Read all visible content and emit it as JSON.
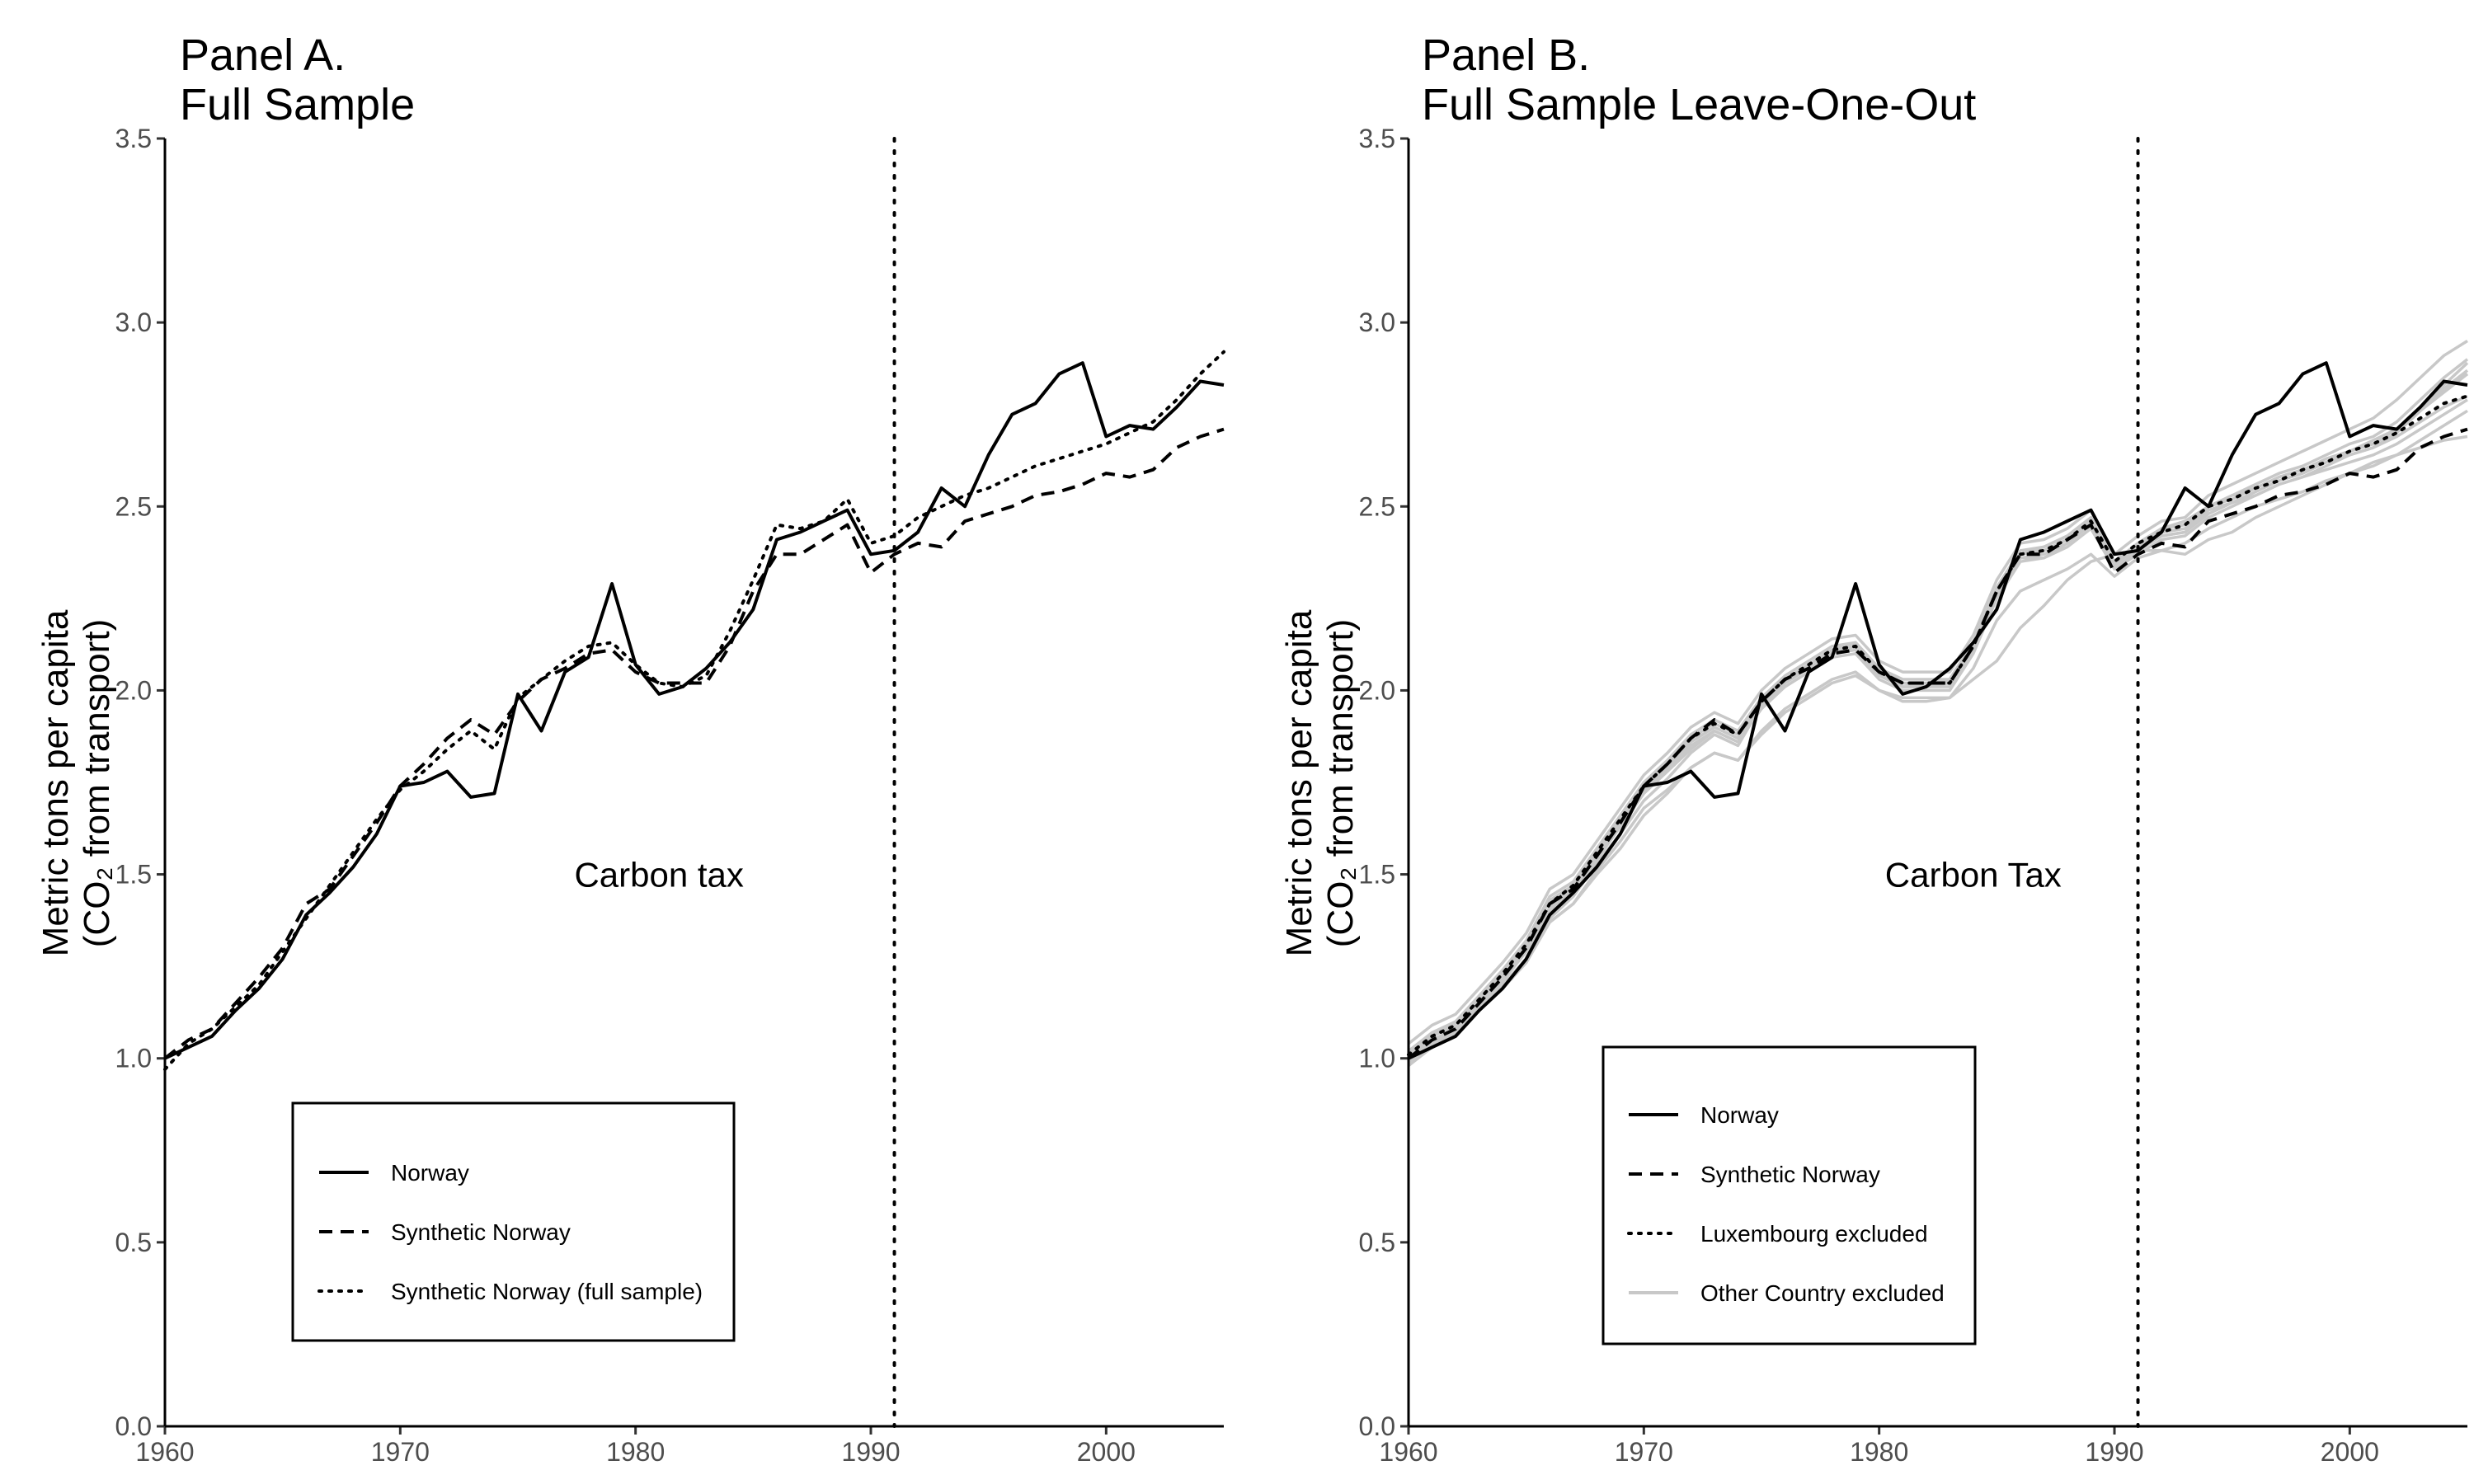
{
  "chart_data": [
    {
      "type": "line",
      "title": "Panel A.",
      "subtitle": "Full Sample",
      "ylabel": "Metric tons per capita",
      "ylabel2": "(CO₂ from transport)",
      "xlim": [
        1960,
        2005
      ],
      "ylim": [
        0,
        3.5
      ],
      "xticks": [
        1960,
        1970,
        1980,
        1990,
        2000
      ],
      "yticks": [
        "0.0",
        "0.5",
        "1.0",
        "1.5",
        "2.0",
        "2.5",
        "3.0",
        "3.5"
      ],
      "vline_x": 1991,
      "annotation": "Carbon tax",
      "annotation_x": 1981,
      "annotation_y": 1.5,
      "legend_position": "bottom-left",
      "x": [
        1960,
        1961,
        1962,
        1963,
        1964,
        1965,
        1966,
        1967,
        1968,
        1969,
        1970,
        1971,
        1972,
        1973,
        1974,
        1975,
        1976,
        1977,
        1978,
        1979,
        1980,
        1981,
        1982,
        1983,
        1984,
        1985,
        1986,
        1987,
        1988,
        1989,
        1990,
        1991,
        1992,
        1993,
        1994,
        1995,
        1996,
        1997,
        1998,
        1999,
        2000,
        2001,
        2002,
        2003,
        2004,
        2005
      ],
      "series": [
        {
          "name": "Norway",
          "style": "solid",
          "color": "#000000",
          "values": [
            1.0,
            1.03,
            1.06,
            1.13,
            1.19,
            1.27,
            1.39,
            1.45,
            1.52,
            1.61,
            1.74,
            1.75,
            1.78,
            1.71,
            1.72,
            1.99,
            1.89,
            2.05,
            2.09,
            2.29,
            2.07,
            1.99,
            2.01,
            2.06,
            2.13,
            2.22,
            2.41,
            2.43,
            2.46,
            2.49,
            2.37,
            2.38,
            2.43,
            2.55,
            2.5,
            2.64,
            2.75,
            2.78,
            2.86,
            2.89,
            2.69,
            2.72,
            2.71,
            2.77,
            2.84,
            2.83
          ]
        },
        {
          "name": "Synthetic Norway",
          "style": "dashed",
          "color": "#000000",
          "values": [
            1.0,
            1.05,
            1.08,
            1.15,
            1.22,
            1.3,
            1.42,
            1.46,
            1.55,
            1.64,
            1.74,
            1.8,
            1.87,
            1.92,
            1.88,
            1.97,
            2.03,
            2.06,
            2.1,
            2.11,
            2.05,
            2.02,
            2.02,
            2.02,
            2.12,
            2.27,
            2.37,
            2.37,
            2.41,
            2.45,
            2.32,
            2.37,
            2.4,
            2.39,
            2.46,
            2.48,
            2.5,
            2.53,
            2.54,
            2.56,
            2.59,
            2.58,
            2.6,
            2.66,
            2.69,
            2.71
          ]
        },
        {
          "name": "Synthetic Norway (full sample)",
          "style": "dotted",
          "color": "#000000",
          "values": [
            0.97,
            1.04,
            1.08,
            1.14,
            1.2,
            1.29,
            1.38,
            1.47,
            1.56,
            1.65,
            1.73,
            1.78,
            1.84,
            1.89,
            1.84,
            1.98,
            2.03,
            2.08,
            2.12,
            2.13,
            2.07,
            2.02,
            2.01,
            2.04,
            2.16,
            2.3,
            2.45,
            2.44,
            2.46,
            2.52,
            2.4,
            2.42,
            2.47,
            2.5,
            2.53,
            2.55,
            2.58,
            2.61,
            2.63,
            2.65,
            2.67,
            2.7,
            2.73,
            2.79,
            2.86,
            2.92
          ]
        }
      ]
    },
    {
      "type": "line",
      "title": "Panel B.",
      "subtitle": "Full Sample Leave-One-Out",
      "ylabel": "Metric tons per capita",
      "ylabel2": "(CO₂ from transport)",
      "xlim": [
        1960,
        2005
      ],
      "ylim": [
        0,
        3.5
      ],
      "xticks": [
        1960,
        1970,
        1980,
        1990,
        2000
      ],
      "yticks": [
        "0.0",
        "0.5",
        "1.0",
        "1.5",
        "2.0",
        "2.5",
        "3.0",
        "3.5"
      ],
      "vline_x": 1991,
      "annotation": "Carbon Tax",
      "annotation_x": 1984,
      "annotation_y": 1.5,
      "legend_position": "bottom-left",
      "x": [
        1960,
        1961,
        1962,
        1963,
        1964,
        1965,
        1966,
        1967,
        1968,
        1969,
        1970,
        1971,
        1972,
        1973,
        1974,
        1975,
        1976,
        1977,
        1978,
        1979,
        1980,
        1981,
        1982,
        1983,
        1984,
        1985,
        1986,
        1987,
        1988,
        1989,
        1990,
        1991,
        1992,
        1993,
        1994,
        1995,
        1996,
        1997,
        1998,
        1999,
        2000,
        2001,
        2002,
        2003,
        2004,
        2005
      ],
      "background_series_name": "Other Country excluded",
      "background_series_color": "#c8c8c8",
      "background_series": [
        [
          1.02,
          1.07,
          1.1,
          1.17,
          1.24,
          1.32,
          1.44,
          1.48,
          1.57,
          1.66,
          1.75,
          1.81,
          1.88,
          1.92,
          1.89,
          1.98,
          2.04,
          2.08,
          2.12,
          2.13,
          2.06,
          2.03,
          2.03,
          2.03,
          2.13,
          2.28,
          2.38,
          2.39,
          2.42,
          2.47,
          2.35,
          2.4,
          2.44,
          2.45,
          2.5,
          2.53,
          2.56,
          2.59,
          2.61,
          2.64,
          2.67,
          2.69,
          2.73,
          2.79,
          2.85,
          2.9
        ],
        [
          1.04,
          1.09,
          1.12,
          1.19,
          1.26,
          1.34,
          1.46,
          1.5,
          1.59,
          1.68,
          1.77,
          1.83,
          1.9,
          1.94,
          1.91,
          2.0,
          2.06,
          2.1,
          2.14,
          2.15,
          2.08,
          2.05,
          2.05,
          2.05,
          2.15,
          2.3,
          2.4,
          2.41,
          2.44,
          2.49,
          2.37,
          2.42,
          2.46,
          2.47,
          2.53,
          2.56,
          2.59,
          2.62,
          2.65,
          2.68,
          2.71,
          2.74,
          2.79,
          2.85,
          2.91,
          2.95
        ],
        [
          0.99,
          1.04,
          1.07,
          1.14,
          1.21,
          1.29,
          1.41,
          1.45,
          1.54,
          1.63,
          1.72,
          1.78,
          1.85,
          1.89,
          1.86,
          1.95,
          2.01,
          2.05,
          2.09,
          2.1,
          2.03,
          2.0,
          2.0,
          2.0,
          2.1,
          2.25,
          2.35,
          2.36,
          2.39,
          2.44,
          2.33,
          2.37,
          2.41,
          2.42,
          2.47,
          2.5,
          2.53,
          2.56,
          2.58,
          2.61,
          2.64,
          2.66,
          2.7,
          2.76,
          2.81,
          2.86
        ],
        [
          1.01,
          1.06,
          1.09,
          1.16,
          1.23,
          1.31,
          1.43,
          1.47,
          1.56,
          1.65,
          1.74,
          1.8,
          1.87,
          1.91,
          1.88,
          1.97,
          2.03,
          2.07,
          2.11,
          2.12,
          2.05,
          2.02,
          2.02,
          2.02,
          2.12,
          2.27,
          2.37,
          2.38,
          2.41,
          2.46,
          2.34,
          2.39,
          2.42,
          2.43,
          2.48,
          2.51,
          2.54,
          2.57,
          2.59,
          2.62,
          2.65,
          2.67,
          2.71,
          2.77,
          2.82,
          2.87
        ],
        [
          0.98,
          1.03,
          1.07,
          1.13,
          1.19,
          1.27,
          1.38,
          1.44,
          1.53,
          1.61,
          1.7,
          1.76,
          1.83,
          1.88,
          1.85,
          1.96,
          2.02,
          2.07,
          2.11,
          2.13,
          2.06,
          2.02,
          2.01,
          2.03,
          2.13,
          2.27,
          2.37,
          2.39,
          2.42,
          2.47,
          2.35,
          2.4,
          2.44,
          2.46,
          2.5,
          2.53,
          2.55,
          2.58,
          2.6,
          2.63,
          2.65,
          2.68,
          2.71,
          2.76,
          2.82,
          2.86
        ],
        [
          1.0,
          1.05,
          1.08,
          1.14,
          1.21,
          1.29,
          1.4,
          1.46,
          1.55,
          1.63,
          1.72,
          1.78,
          1.84,
          1.89,
          1.86,
          1.96,
          2.02,
          2.06,
          2.1,
          2.12,
          2.05,
          2.01,
          2.01,
          2.02,
          2.11,
          2.26,
          2.36,
          2.37,
          2.4,
          2.45,
          2.34,
          2.39,
          2.43,
          2.44,
          2.49,
          2.51,
          2.53,
          2.56,
          2.58,
          2.6,
          2.62,
          2.64,
          2.67,
          2.71,
          2.75,
          2.79
        ],
        [
          1.02,
          1.06,
          1.1,
          1.16,
          1.22,
          1.3,
          1.41,
          1.47,
          1.56,
          1.64,
          1.73,
          1.79,
          1.86,
          1.9,
          1.87,
          1.97,
          2.03,
          2.07,
          2.11,
          2.13,
          2.06,
          2.02,
          2.02,
          2.03,
          2.12,
          2.27,
          2.37,
          2.38,
          2.41,
          2.46,
          2.35,
          2.4,
          2.43,
          2.44,
          2.5,
          2.52,
          2.55,
          2.58,
          2.6,
          2.62,
          2.64,
          2.66,
          2.69,
          2.73,
          2.77,
          2.8
        ],
        [
          0.99,
          1.04,
          1.08,
          1.15,
          1.22,
          1.3,
          1.41,
          1.46,
          1.55,
          1.64,
          1.73,
          1.79,
          1.86,
          1.9,
          1.87,
          1.96,
          2.02,
          2.06,
          2.1,
          2.11,
          2.04,
          2.01,
          2.01,
          2.01,
          2.11,
          2.26,
          2.36,
          2.36,
          2.4,
          2.45,
          2.33,
          2.38,
          2.42,
          2.43,
          2.49,
          2.51,
          2.54,
          2.57,
          2.59,
          2.62,
          2.65,
          2.67,
          2.71,
          2.77,
          2.83,
          2.89
        ],
        [
          1.01,
          1.05,
          1.08,
          1.13,
          1.19,
          1.26,
          1.37,
          1.42,
          1.51,
          1.59,
          1.68,
          1.73,
          1.79,
          1.83,
          1.81,
          1.89,
          1.95,
          1.99,
          2.03,
          2.05,
          2.0,
          1.97,
          1.97,
          1.98,
          2.06,
          2.19,
          2.27,
          2.3,
          2.33,
          2.37,
          2.31,
          2.36,
          2.38,
          2.4,
          2.44,
          2.47,
          2.5,
          2.52,
          2.54,
          2.57,
          2.59,
          2.61,
          2.64,
          2.68,
          2.72,
          2.76
        ],
        [
          1.02,
          1.06,
          1.09,
          1.14,
          1.2,
          1.27,
          1.37,
          1.42,
          1.5,
          1.57,
          1.66,
          1.72,
          1.79,
          1.83,
          1.81,
          1.88,
          1.94,
          1.98,
          2.02,
          2.04,
          2.0,
          1.98,
          1.98,
          1.98,
          2.03,
          2.08,
          2.17,
          2.23,
          2.3,
          2.35,
          2.37,
          2.38,
          2.38,
          2.37,
          2.41,
          2.43,
          2.47,
          2.5,
          2.53,
          2.56,
          2.59,
          2.62,
          2.64,
          2.66,
          2.68,
          2.69
        ]
      ],
      "series": [
        {
          "name": "Norway",
          "style": "solid",
          "color": "#000000",
          "values": [
            1.0,
            1.03,
            1.06,
            1.13,
            1.19,
            1.27,
            1.39,
            1.45,
            1.52,
            1.61,
            1.74,
            1.75,
            1.78,
            1.71,
            1.72,
            1.99,
            1.89,
            2.05,
            2.09,
            2.29,
            2.07,
            1.99,
            2.01,
            2.06,
            2.13,
            2.22,
            2.41,
            2.43,
            2.46,
            2.49,
            2.37,
            2.38,
            2.43,
            2.55,
            2.5,
            2.64,
            2.75,
            2.78,
            2.86,
            2.89,
            2.69,
            2.72,
            2.71,
            2.77,
            2.84,
            2.83
          ]
        },
        {
          "name": "Synthetic Norway",
          "style": "dashed",
          "color": "#000000",
          "values": [
            1.0,
            1.05,
            1.08,
            1.15,
            1.22,
            1.3,
            1.42,
            1.46,
            1.55,
            1.64,
            1.74,
            1.8,
            1.87,
            1.92,
            1.88,
            1.97,
            2.03,
            2.06,
            2.1,
            2.11,
            2.05,
            2.02,
            2.02,
            2.02,
            2.12,
            2.27,
            2.37,
            2.37,
            2.41,
            2.45,
            2.32,
            2.37,
            2.4,
            2.39,
            2.46,
            2.48,
            2.5,
            2.53,
            2.54,
            2.56,
            2.59,
            2.58,
            2.6,
            2.66,
            2.69,
            2.71
          ]
        },
        {
          "name": "Luxembourg excluded",
          "style": "dotted",
          "color": "#000000",
          "values": [
            1.01,
            1.06,
            1.09,
            1.16,
            1.23,
            1.31,
            1.42,
            1.47,
            1.56,
            1.65,
            1.74,
            1.8,
            1.87,
            1.91,
            1.88,
            1.97,
            2.03,
            2.07,
            2.11,
            2.12,
            2.05,
            2.02,
            2.02,
            2.02,
            2.12,
            2.27,
            2.37,
            2.38,
            2.41,
            2.46,
            2.35,
            2.4,
            2.43,
            2.45,
            2.5,
            2.52,
            2.55,
            2.57,
            2.6,
            2.62,
            2.65,
            2.67,
            2.7,
            2.74,
            2.78,
            2.8
          ]
        }
      ]
    }
  ]
}
